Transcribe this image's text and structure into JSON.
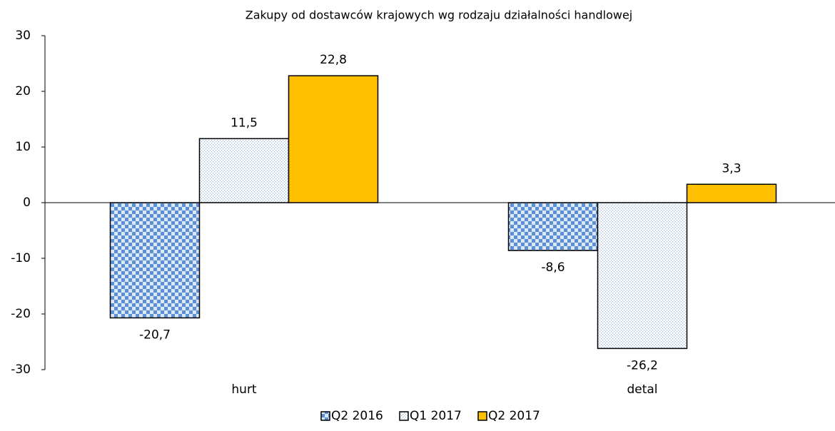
{
  "chart_data": {
    "type": "bar",
    "title": "Zakupy od dostawców krajowych wg rodzaju działalności handlowej",
    "categories": [
      "hurt",
      "detal"
    ],
    "series": [
      {
        "name": "Q2 2016",
        "color": "#5b8fd6",
        "pattern": "checker",
        "values": [
          -20.7,
          -8.6
        ],
        "value_labels": [
          "-20,7",
          "-8,6"
        ]
      },
      {
        "name": "Q1 2017",
        "color": "#8db4e2",
        "pattern": "dots",
        "values": [
          11.5,
          -26.2
        ],
        "value_labels": [
          "11,5",
          "-26,2"
        ]
      },
      {
        "name": "Q2 2017",
        "color": "#ffc000",
        "pattern": "solid",
        "values": [
          22.8,
          3.3
        ],
        "value_labels": [
          "22,8",
          "3,3"
        ]
      }
    ],
    "ylim": [
      -30,
      30
    ],
    "yticks": [
      -30,
      -20,
      -10,
      0,
      10,
      20,
      30
    ],
    "grid": false,
    "legend": "bottom"
  }
}
